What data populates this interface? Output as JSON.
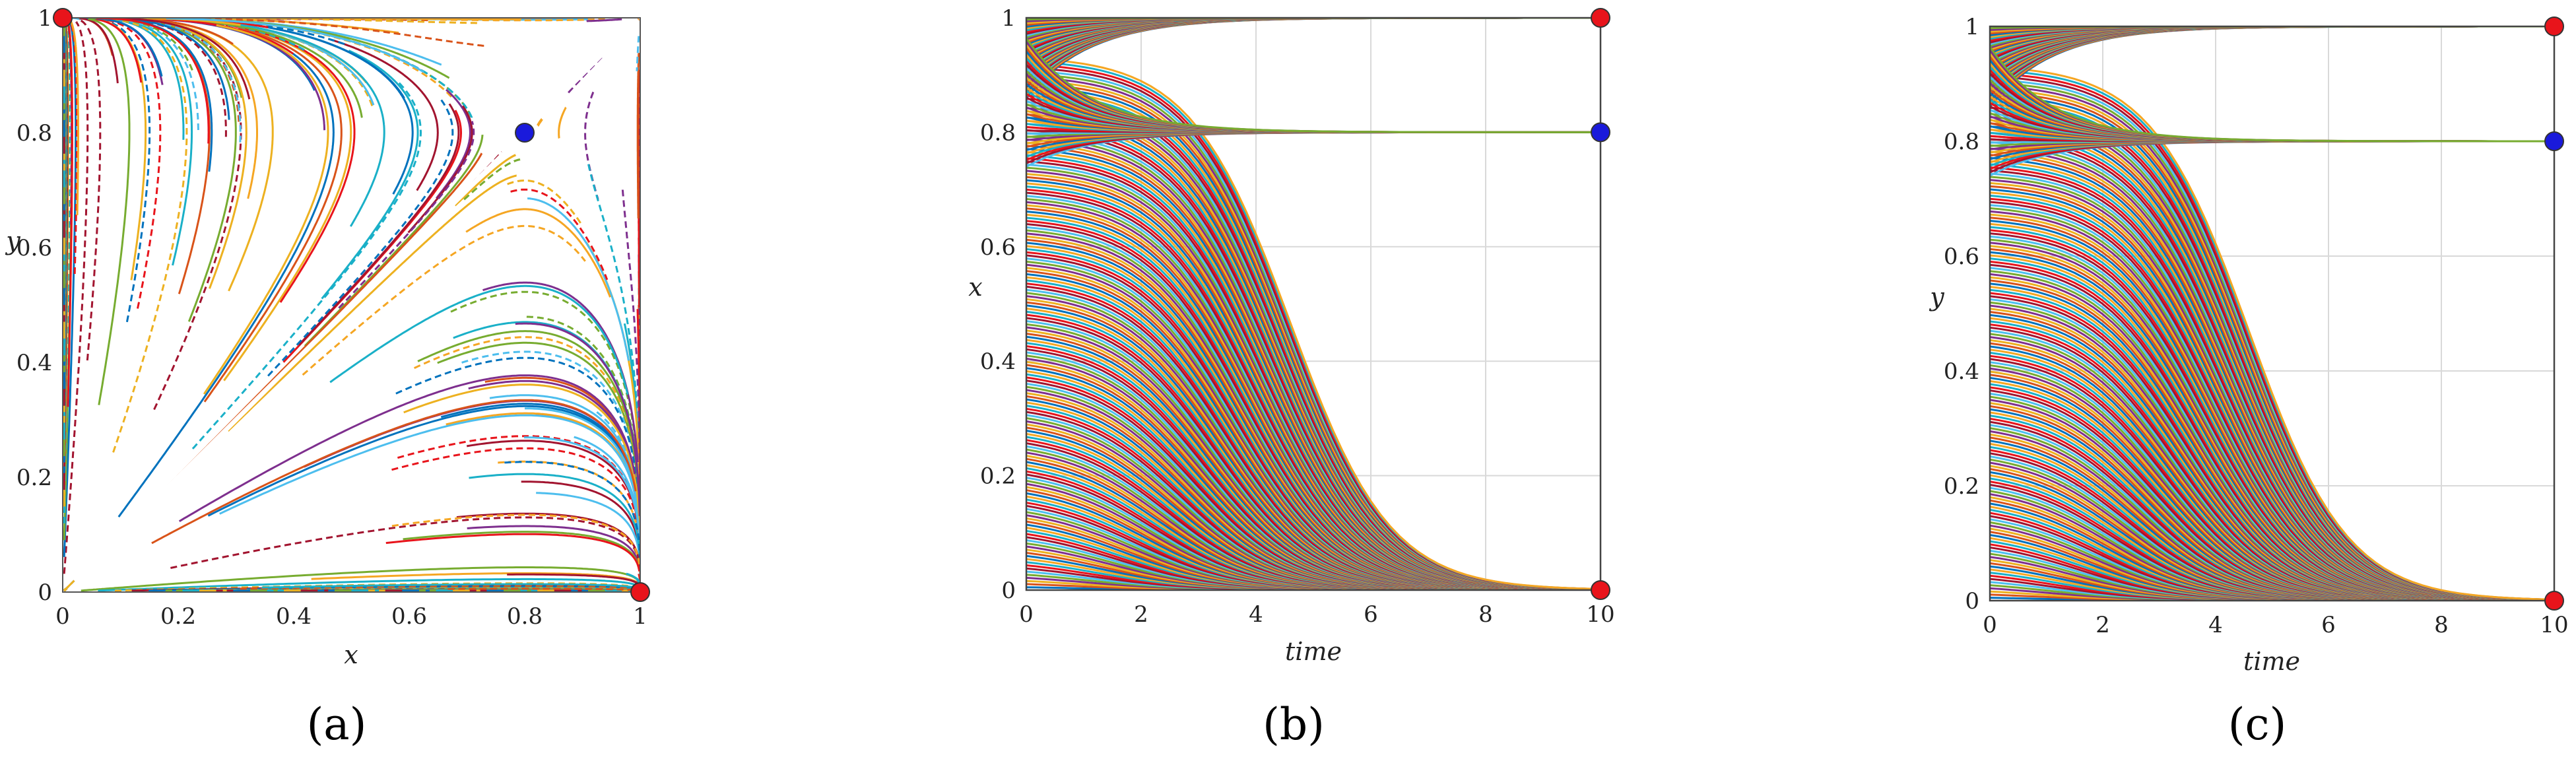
{
  "chart_data": [
    {
      "id": "a",
      "type": "line",
      "subtype": "phase-portrait",
      "caption": "(a)",
      "xlabel": "x",
      "ylabel": "y",
      "xlim": [
        0,
        1
      ],
      "ylim": [
        0,
        1
      ],
      "xticks": [
        "0",
        "0.2",
        "0.4",
        "0.6",
        "0.8",
        "1"
      ],
      "yticks": [
        "0",
        "0.2",
        "0.4",
        "0.6",
        "0.8",
        "1"
      ],
      "grid": false,
      "saddle_point": [
        0.8,
        0.8
      ],
      "equilibria": [
        {
          "x": 0,
          "y": 1,
          "kind": "stable",
          "color": "#e8141b"
        },
        {
          "x": 1,
          "y": 0,
          "kind": "stable",
          "color": "#e8141b"
        },
        {
          "x": 0.8,
          "y": 0.8,
          "kind": "saddle",
          "color": "#1a1adb"
        }
      ]
    },
    {
      "id": "b",
      "type": "line",
      "subtype": "trajectories-over-time",
      "caption": "(b)",
      "xlabel": "time",
      "ylabel": "x",
      "xlim": [
        0,
        10
      ],
      "ylim": [
        0,
        1
      ],
      "xticks": [
        "0",
        "2",
        "4",
        "6",
        "8",
        "10"
      ],
      "yticks": [
        "0",
        "0.2",
        "0.4",
        "0.6",
        "0.8",
        "1"
      ],
      "grid": true,
      "steady_states": [
        {
          "time": 10,
          "value": 1,
          "kind": "stable",
          "color": "#e8141b"
        },
        {
          "time": 10,
          "value": 0.8,
          "kind": "saddle",
          "color": "#1a1adb"
        },
        {
          "time": 10,
          "value": 0,
          "kind": "stable",
          "color": "#e8141b"
        }
      ]
    },
    {
      "id": "c",
      "type": "line",
      "subtype": "trajectories-over-time",
      "caption": "(c)",
      "xlabel": "time",
      "ylabel": "y",
      "xlim": [
        0,
        10
      ],
      "ylim": [
        0,
        1
      ],
      "xticks": [
        "0",
        "2",
        "4",
        "6",
        "8",
        "10"
      ],
      "yticks": [
        "0",
        "0.2",
        "0.4",
        "0.6",
        "0.8",
        "1"
      ],
      "grid": true,
      "steady_states": [
        {
          "time": 10,
          "value": 1,
          "kind": "stable",
          "color": "#e8141b"
        },
        {
          "time": 10,
          "value": 0.8,
          "kind": "saddle",
          "color": "#1a1adb"
        },
        {
          "time": 10,
          "value": 0,
          "kind": "stable",
          "color": "#e8141b"
        }
      ]
    }
  ],
  "palette": [
    "#0072bd",
    "#d95319",
    "#edb120",
    "#7e2f8e",
    "#77ac30",
    "#4dbeee",
    "#a2142f",
    "#e8141b",
    "#1ab0c8",
    "#f5a623"
  ]
}
